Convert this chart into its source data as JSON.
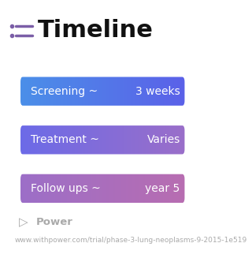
{
  "title": "Timeline",
  "title_fontsize": 22,
  "title_color": "#111111",
  "title_bold": true,
  "icon_color": "#7b5ea7",
  "background_color": "#ffffff",
  "rows": [
    {
      "label": "Screening ~",
      "value": "3 weeks",
      "color_left": "#4a90e8",
      "color_right": "#5b5fe8"
    },
    {
      "label": "Treatment ~",
      "value": "Varies",
      "color_left": "#6a6ae8",
      "color_right": "#9b6ec8"
    },
    {
      "label": "Follow ups ~",
      "value": "year 5",
      "color_left": "#9b6ec8",
      "color_right": "#b86db0"
    }
  ],
  "row_text_color": "#ffffff",
  "row_label_fontsize": 10,
  "row_value_fontsize": 10,
  "footer_text": "Power",
  "footer_url": "www.withpower.com/trial/phase-3-lung-neoplasms-9-2015-1e519",
  "footer_fontsize": 6.5,
  "footer_color": "#aaaaaa"
}
